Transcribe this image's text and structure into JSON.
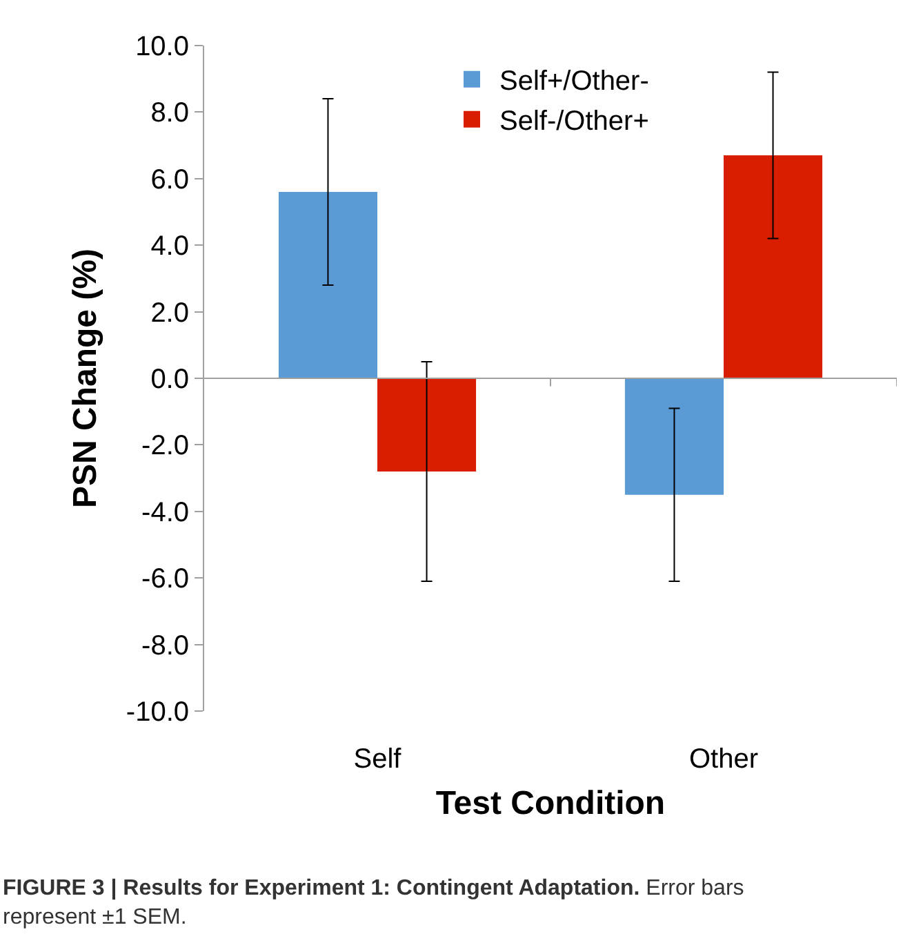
{
  "chart_data": {
    "type": "bar",
    "xlabel": "Test Condition",
    "ylabel": "PSN Change (%)",
    "categories": [
      "Self",
      "Other"
    ],
    "series": [
      {
        "name": "Self+/Other-",
        "color": "#5b9bd5",
        "values": [
          5.6,
          -3.5
        ],
        "errors": [
          2.8,
          2.6
        ]
      },
      {
        "name": "Self-/Other+",
        "color": "#d91e00",
        "values": [
          -2.8,
          6.7
        ],
        "errors": [
          3.3,
          2.5
        ]
      }
    ],
    "ylim": [
      -10,
      10
    ],
    "yticks": [
      {
        "value": -10,
        "label": "-10.0"
      },
      {
        "value": -8,
        "label": "-8.0"
      },
      {
        "value": -6,
        "label": "-6.0"
      },
      {
        "value": -4,
        "label": "-4.0"
      },
      {
        "value": -2,
        "label": "-2.0"
      },
      {
        "value": 0,
        "label": "0.0"
      },
      {
        "value": 2,
        "label": "2.0"
      },
      {
        "value": 4,
        "label": "4.0"
      },
      {
        "value": 6,
        "label": "6.0"
      },
      {
        "value": 8,
        "label": "8.0"
      },
      {
        "value": 10,
        "label": "10.0"
      }
    ],
    "legend": "top",
    "annotations": [
      "**FIGURE 3 | Results for Experiment 1: Contingent Adaptation.** Error bars represent ±1 SEM."
    ]
  }
}
